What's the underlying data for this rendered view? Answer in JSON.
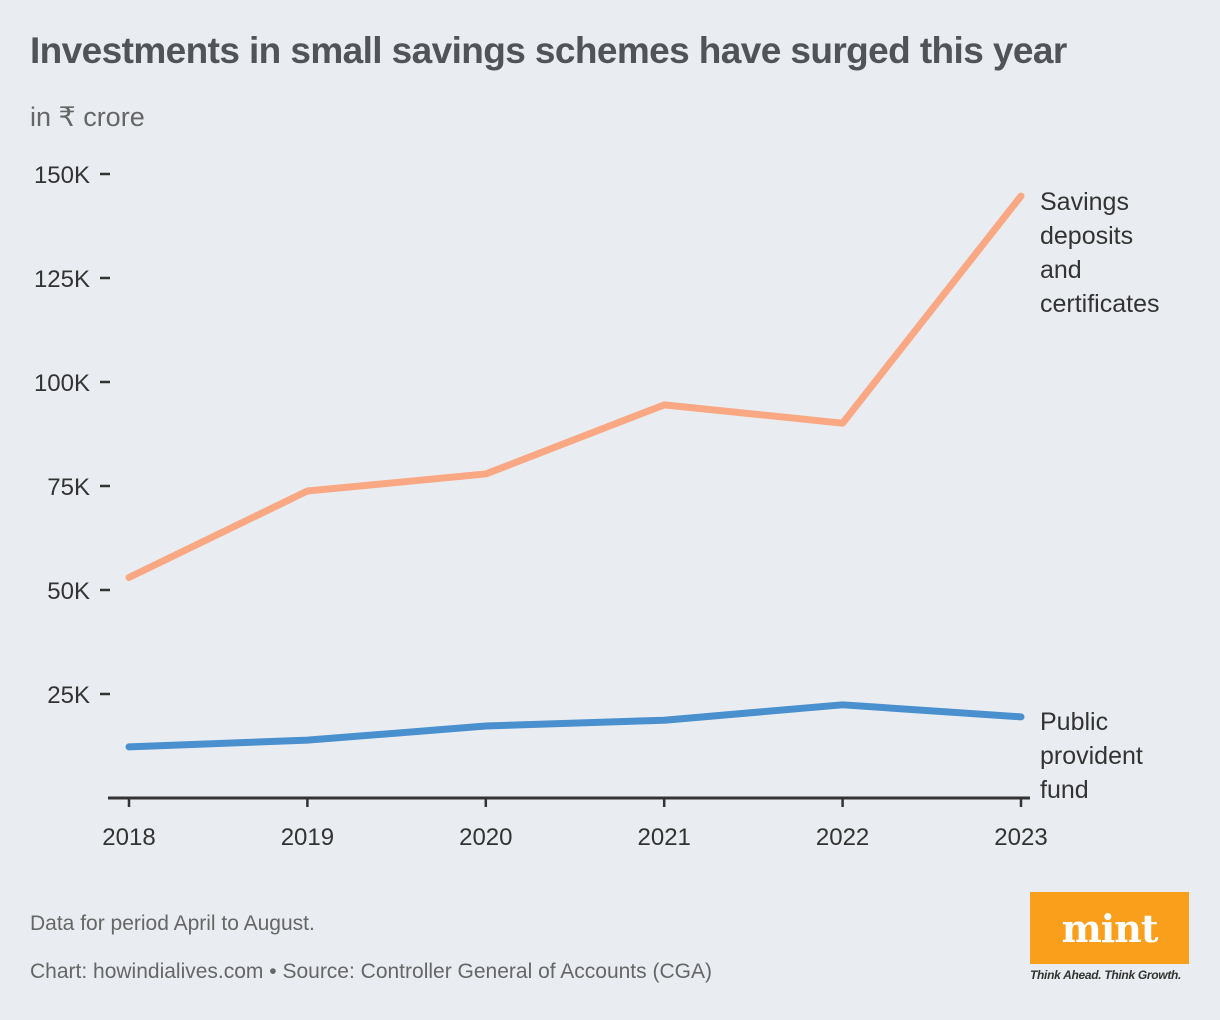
{
  "chart_data": {
    "type": "line",
    "title": "Investments in small savings schemes have surged this year",
    "subtitle": "in ₹ crore",
    "x": [
      "2018",
      "2019",
      "2020",
      "2021",
      "2022",
      "2023"
    ],
    "yticks": [
      25000,
      50000,
      75000,
      100000,
      125000,
      150000
    ],
    "ytick_labels": [
      "25K",
      "50K",
      "75K",
      "100K",
      "125K",
      "150K"
    ],
    "ylim": [
      0,
      150000
    ],
    "grid": false,
    "series": [
      {
        "name": "Savings deposits and certificates",
        "label_lines": [
          "Savings",
          "deposits",
          "and",
          "certificates"
        ],
        "color": "#f9a883",
        "values": [
          53000,
          73800,
          77900,
          94500,
          90100,
          144700
        ]
      },
      {
        "name": "Public provident fund",
        "label_lines": [
          "Public",
          "provident",
          "fund"
        ],
        "color": "#4a90cf",
        "values": [
          12300,
          13900,
          17300,
          18700,
          22400,
          19500
        ]
      }
    ],
    "note": "Data for period April to August.",
    "source": "Chart: howindialives.com • Source: Controller General of Accounts (CGA)"
  },
  "logo": {
    "word": "mint",
    "tagline": "Think Ahead. Think Growth.",
    "color": "#f99f1b"
  }
}
